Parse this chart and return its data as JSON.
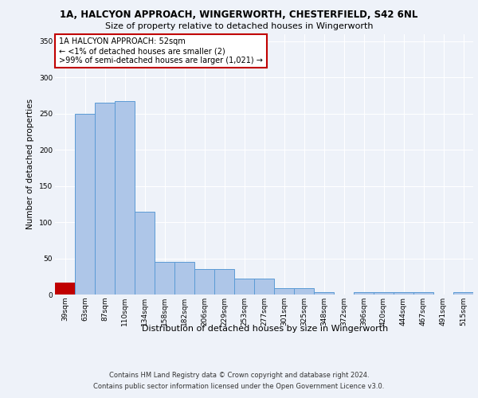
{
  "title_line1": "1A, HALCYON APPROACH, WINGERWORTH, CHESTERFIELD, S42 6NL",
  "title_line2": "Size of property relative to detached houses in Wingerworth",
  "xlabel": "Distribution of detached houses by size in Wingerworth",
  "ylabel": "Number of detached properties",
  "categories": [
    "39sqm",
    "63sqm",
    "87sqm",
    "110sqm",
    "134sqm",
    "158sqm",
    "182sqm",
    "206sqm",
    "229sqm",
    "253sqm",
    "277sqm",
    "301sqm",
    "325sqm",
    "348sqm",
    "372sqm",
    "396sqm",
    "420sqm",
    "444sqm",
    "467sqm",
    "491sqm",
    "515sqm"
  ],
  "values": [
    16,
    249,
    265,
    267,
    114,
    45,
    45,
    35,
    35,
    22,
    22,
    9,
    9,
    3,
    0,
    3,
    3,
    3,
    3,
    0,
    3
  ],
  "highlight_index": 0,
  "bar_color": "#aec6e8",
  "bar_edge_color": "#5b9bd5",
  "highlight_bar_color": "#c00000",
  "highlight_bar_edge_color": "#c00000",
  "ylim": [
    0,
    360
  ],
  "yticks": [
    0,
    50,
    100,
    150,
    200,
    250,
    300,
    350
  ],
  "annotation_text": "1A HALCYON APPROACH: 52sqm\n← <1% of detached houses are smaller (2)\n>99% of semi-detached houses are larger (1,021) →",
  "annotation_box_color": "#c00000",
  "footer_line1": "Contains HM Land Registry data © Crown copyright and database right 2024.",
  "footer_line2": "Contains public sector information licensed under the Open Government Licence v3.0.",
  "bg_color": "#eef2f9",
  "plot_bg_color": "#eef2f9",
  "grid_color": "#ffffff",
  "title1_fontsize": 8.5,
  "title2_fontsize": 8.0,
  "ylabel_fontsize": 7.5,
  "xlabel_fontsize": 8.0,
  "tick_fontsize": 6.5,
  "ann_fontsize": 7.0,
  "footer_fontsize": 6.0
}
